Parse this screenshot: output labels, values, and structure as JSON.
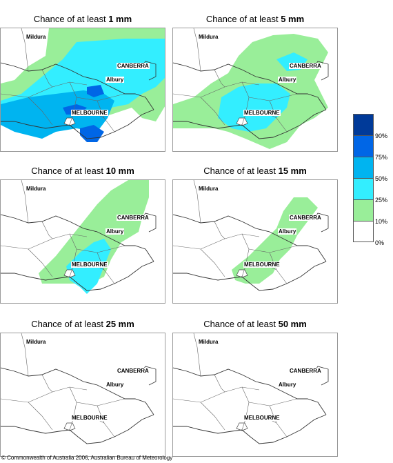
{
  "panels": [
    {
      "title_prefix": "Chance of at least ",
      "threshold": "1 mm",
      "level": 5
    },
    {
      "title_prefix": "Chance of at least ",
      "threshold": "5 mm",
      "level": 3
    },
    {
      "title_prefix": "Chance of at least ",
      "threshold": "10 mm",
      "level": 2
    },
    {
      "title_prefix": "Chance of at least ",
      "threshold": "15 mm",
      "level": 1
    },
    {
      "title_prefix": "Chance of at least ",
      "threshold": "25 mm",
      "level": 0
    },
    {
      "title_prefix": "Chance of at least ",
      "threshold": "50 mm",
      "level": 0
    }
  ],
  "cities": {
    "mildura": "Mildura",
    "canberra": "CANBERRA",
    "albury": "Albury",
    "melbourne": "MELBOURNE"
  },
  "legend": {
    "colors": [
      "#003a99",
      "#0066e6",
      "#00b4f0",
      "#33eeff",
      "#99ee99",
      "#ffffff"
    ],
    "labels": [
      "90%",
      "75%",
      "50%",
      "25%",
      "10%",
      "0%"
    ]
  },
  "copyright": "© Commonwealth of Australia 2006, Australian Bureau of Meteorology"
}
